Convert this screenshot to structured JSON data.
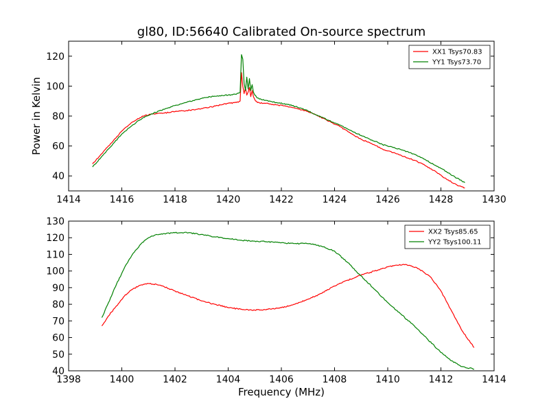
{
  "chart_data": [
    {
      "type": "line",
      "title": "gl80, ID:56640 Calibrated On-source spectrum",
      "xlabel": "",
      "ylabel": "Power in Kelvin",
      "xlim": [
        1414,
        1430
      ],
      "ylim": [
        30,
        130
      ],
      "xticks": [
        1414,
        1416,
        1418,
        1420,
        1422,
        1424,
        1426,
        1428,
        1430
      ],
      "yticks": [
        40,
        60,
        80,
        100,
        120
      ],
      "legend_position": "top-right",
      "series": [
        {
          "name": "XX1 Tsys70.83",
          "color": "#ff0000",
          "x": [
            1414.9,
            1415.3,
            1415.7,
            1416.0,
            1416.4,
            1416.8,
            1417.2,
            1417.6,
            1418.0,
            1418.4,
            1418.8,
            1419.2,
            1419.6,
            1420.0,
            1420.3,
            1420.45,
            1420.5,
            1420.55,
            1420.6,
            1420.65,
            1420.7,
            1420.75,
            1420.8,
            1420.85,
            1420.9,
            1420.95,
            1421.0,
            1421.1,
            1421.4,
            1421.8,
            1422.2,
            1422.6,
            1423.0,
            1423.4,
            1423.8,
            1424.2,
            1424.6,
            1425.0,
            1425.4,
            1425.8,
            1426.2,
            1426.6,
            1427.0,
            1427.4,
            1427.8,
            1428.2,
            1428.6,
            1428.9
          ],
          "y": [
            48,
            56,
            64,
            70,
            76,
            80,
            81.5,
            82,
            83,
            83.5,
            84.5,
            85.5,
            87,
            88.5,
            89,
            90,
            109,
            100,
            95,
            99,
            94,
            96,
            99,
            93,
            97,
            93,
            91,
            89,
            88.5,
            87.5,
            86.5,
            85,
            83,
            80,
            76.5,
            73,
            68.5,
            64.5,
            61.5,
            58,
            55.5,
            53,
            50.5,
            47,
            43,
            38,
            34,
            32
          ]
        },
        {
          "name": "YY1 Tsys73.70",
          "color": "#008000",
          "x": [
            1414.9,
            1415.3,
            1415.7,
            1416.0,
            1416.4,
            1416.8,
            1417.2,
            1417.6,
            1418.0,
            1418.4,
            1418.8,
            1419.2,
            1419.6,
            1420.0,
            1420.3,
            1420.45,
            1420.5,
            1420.55,
            1420.6,
            1420.65,
            1420.7,
            1420.75,
            1420.8,
            1420.85,
            1420.9,
            1420.95,
            1421.0,
            1421.1,
            1421.4,
            1421.8,
            1422.2,
            1422.6,
            1423.0,
            1423.4,
            1423.8,
            1424.2,
            1424.6,
            1425.0,
            1425.4,
            1425.8,
            1426.2,
            1426.6,
            1427.0,
            1427.4,
            1427.8,
            1428.2,
            1428.6,
            1428.9
          ],
          "y": [
            46,
            54,
            62,
            68,
            74,
            79,
            82,
            84.5,
            87,
            89,
            91,
            92.5,
            93.5,
            94,
            94.5,
            96,
            121,
            118,
            102,
            97,
            106,
            98,
            105,
            97,
            101,
            96,
            94,
            92,
            90.5,
            89,
            88,
            86,
            83.5,
            80,
            77,
            74,
            70.5,
            67,
            64,
            61,
            59,
            57,
            54.5,
            51,
            47,
            43,
            38.5,
            35.5
          ]
        }
      ]
    },
    {
      "type": "line",
      "title": "",
      "xlabel": "Frequency (MHz)",
      "ylabel": "",
      "xlim": [
        1398,
        1414
      ],
      "ylim": [
        40,
        130
      ],
      "xticks": [
        1398,
        1400,
        1402,
        1404,
        1406,
        1408,
        1410,
        1412,
        1414
      ],
      "yticks": [
        40,
        50,
        60,
        70,
        80,
        90,
        100,
        110,
        120,
        130
      ],
      "legend_position": "top-right",
      "series": [
        {
          "name": "XX2 Tsys85.65",
          "color": "#ff0000",
          "x": [
            1399.25,
            1399.5,
            1399.8,
            1400.1,
            1400.4,
            1400.7,
            1401.0,
            1401.3,
            1401.6,
            1402.0,
            1402.5,
            1403.0,
            1403.5,
            1404.0,
            1404.5,
            1405.0,
            1405.5,
            1406.0,
            1406.5,
            1407.0,
            1407.5,
            1408.0,
            1408.5,
            1409.0,
            1409.5,
            1410.0,
            1410.3,
            1410.6,
            1410.9,
            1411.2,
            1411.6,
            1412.0,
            1412.4,
            1412.8,
            1413.25
          ],
          "y": [
            67,
            73,
            79,
            85,
            89,
            91.5,
            92.5,
            92,
            90.5,
            88,
            85,
            82,
            80,
            78,
            77,
            76.5,
            77,
            78,
            80,
            83,
            86.5,
            91,
            94.5,
            97.5,
            100,
            102.5,
            103.5,
            104,
            103,
            101,
            96.5,
            88,
            76,
            64,
            54
          ]
        },
        {
          "name": "YY2 Tsys100.11",
          "color": "#008000",
          "x": [
            1399.25,
            1399.5,
            1399.8,
            1400.1,
            1400.4,
            1400.7,
            1401.0,
            1401.3,
            1401.6,
            1402.0,
            1402.5,
            1403.0,
            1403.5,
            1404.0,
            1404.5,
            1405.0,
            1405.5,
            1406.0,
            1406.5,
            1407.0,
            1407.5,
            1408.0,
            1408.5,
            1409.0,
            1409.5,
            1410.0,
            1410.5,
            1411.0,
            1411.5,
            1412.0,
            1412.4,
            1412.8,
            1413.25
          ],
          "y": [
            72,
            81,
            92,
            102,
            110,
            116,
            120,
            122,
            122.5,
            123,
            123,
            122,
            120.5,
            119.5,
            118.5,
            118,
            117.5,
            117,
            116.5,
            116.5,
            115,
            112,
            105,
            97,
            89,
            81,
            74,
            67,
            59,
            51,
            46,
            42.5,
            41
          ]
        }
      ]
    }
  ]
}
